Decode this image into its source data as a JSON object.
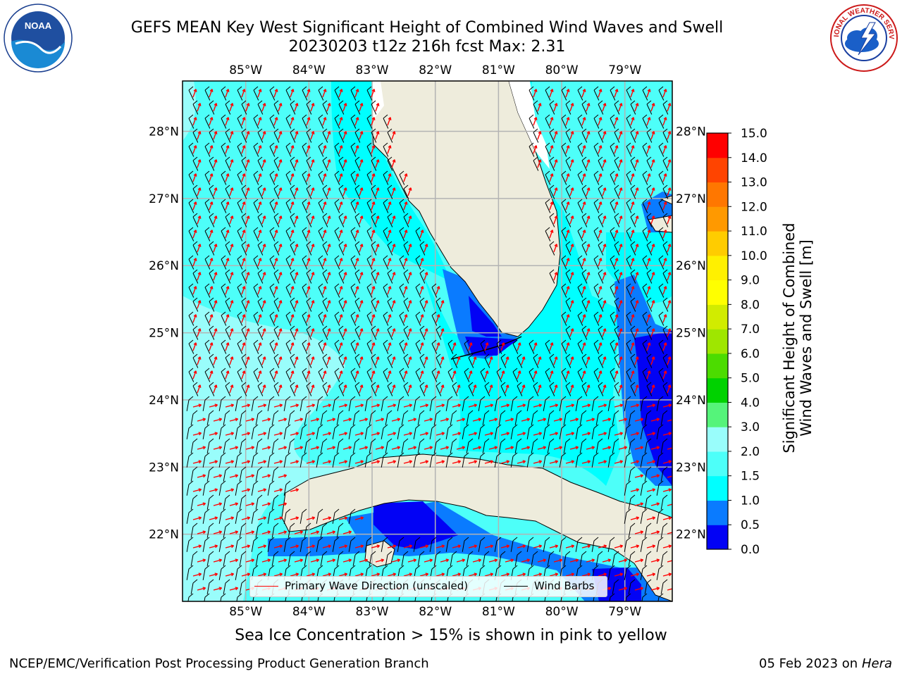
{
  "title": {
    "line1": "GEFS MEAN Key West Significant Height of Combined Wind Waves and Swell",
    "line2": "20230203 t12z 216h fcst    Max: 2.31"
  },
  "logos": {
    "left": {
      "icon": "noaa-logo",
      "text": "NOAA"
    },
    "right": {
      "icon": "nws-logo",
      "text": "NATIONAL WEATHER SERVICE"
    }
  },
  "map": {
    "lon_labels": [
      "85°W",
      "84°W",
      "83°W",
      "82°W",
      "81°W",
      "80°W",
      "79°W"
    ],
    "lat_labels": [
      "28°N",
      "27°N",
      "26°N",
      "25°N",
      "24°N",
      "23°N",
      "22°N"
    ],
    "extent": {
      "lon_min": -86.0,
      "lon_max": -78.25,
      "lat_min": 21.0,
      "lat_max": 28.75
    },
    "colors": {
      "land": "#eeecdc",
      "wave_1_5_2_0": "#4dfff9",
      "wave_2_0_3_0": "#99fdfb",
      "wave_1_0_1_5": "#00ffff",
      "wave_0_5_1_0": "#0a7bff",
      "wave_0_0_0_5": "#0202f5",
      "grid": "#b3b3b3",
      "wave_arrow": "#ff0000",
      "wind_barb": "#000000"
    }
  },
  "legend": {
    "items": [
      {
        "label": "Primary Wave Direction (unscaled)",
        "color": "#ff0000"
      },
      {
        "label": "Wind Barbs",
        "color": "#000000"
      }
    ]
  },
  "colorbar": {
    "label_line1": "Significant Height of Combined",
    "label_line2": "Wind Waves and Swell [m]",
    "ticks": [
      "0.0",
      "0.5",
      "1.0",
      "1.5",
      "2.0",
      "3.0",
      "4.0",
      "5.0",
      "6.0",
      "7.0",
      "8.0",
      "9.0",
      "10.0",
      "11.0",
      "12.0",
      "13.0",
      "14.0",
      "15.0"
    ],
    "colors": [
      "#0202f5",
      "#0a7bff",
      "#00ffff",
      "#4dfff9",
      "#99fdfb",
      "#55f47a",
      "#00d200",
      "#4cdc00",
      "#9fe600",
      "#d1ec00",
      "#ffff00",
      "#fff000",
      "#ffcc00",
      "#ff9900",
      "#ff7700",
      "#ff4400",
      "#ff0000"
    ]
  },
  "footer": {
    "note": "Sea Ice Concentration > 15% is shown in pink to yellow",
    "credit": "NCEP/EMC/Verification Post Processing Product Generation Branch",
    "date": "05 Feb 2023 on",
    "host": "Hera"
  }
}
